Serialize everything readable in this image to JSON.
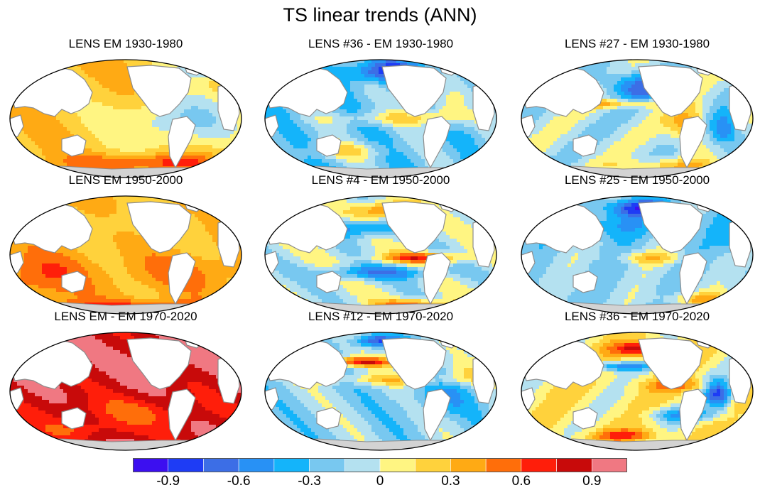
{
  "title": "TS linear trends (ANN)",
  "panels": [
    {
      "title": "LENS EM 1930-1980",
      "pattern": "em1930"
    },
    {
      "title": "LENS #36 - EM 1930-1980",
      "pattern": "m36a"
    },
    {
      "title": "LENS #27 - EM 1930-1980",
      "pattern": "m27"
    },
    {
      "title": "LENS EM 1950-2000",
      "pattern": "em1950"
    },
    {
      "title": "LENS #4 - EM 1950-2000",
      "pattern": "m4"
    },
    {
      "title": "LENS #25 - EM 1950-2000",
      "pattern": "m25"
    },
    {
      "title": "LENS EM - EM 1970-2020",
      "pattern": "em1970"
    },
    {
      "title": "LENS #12 - EM 1970-2020",
      "pattern": "m12"
    },
    {
      "title": "LENS #36 - EM 1970-2020",
      "pattern": "m36b"
    }
  ],
  "colorbar": {
    "colors": [
      "#3c0ff0",
      "#1e3cf5",
      "#3c6ee6",
      "#2891f5",
      "#14b4fa",
      "#78c8f0",
      "#b4e1f0",
      "#fff582",
      "#ffd23c",
      "#ffaa14",
      "#ff6e0a",
      "#ff1e0a",
      "#c80a0a",
      "#f07882"
    ],
    "boundaries": [
      -1.05,
      -0.9,
      -0.75,
      -0.6,
      -0.45,
      -0.3,
      -0.15,
      0,
      0.15,
      0.3,
      0.45,
      0.6,
      0.75,
      0.9,
      1.05
    ],
    "labels": [
      "-0.9",
      "-0.6",
      "-0.3",
      "0",
      "0.3",
      "0.6",
      "0.9"
    ],
    "label_values": [
      -0.9,
      -0.6,
      -0.3,
      0,
      0.3,
      0.6,
      0.9
    ]
  },
  "map_colors": {
    "land": "#ffffff",
    "antarctica": "#d3d3d3",
    "coast": "#8c8c8c",
    "frame": "#000000"
  },
  "chart_data": {
    "type": "heatmap",
    "title": "TS linear trends (ANN)",
    "variable": "TS",
    "panels": [
      "LENS EM 1930-1980",
      "LENS #36 - EM 1930-1980",
      "LENS #27 - EM 1930-1980",
      "LENS EM 1950-2000",
      "LENS #4 - EM 1950-2000",
      "LENS #25 - EM 1950-2000",
      "LENS EM - EM 1970-2020",
      "LENS #12 - EM 1970-2020",
      "LENS #36 - EM 1970-2020"
    ],
    "colorbar_range": [
      -1.05,
      1.05
    ],
    "colorbar_ticks": [
      -0.9,
      -0.6,
      -0.3,
      0,
      0.3,
      0.6,
      0.9
    ]
  }
}
